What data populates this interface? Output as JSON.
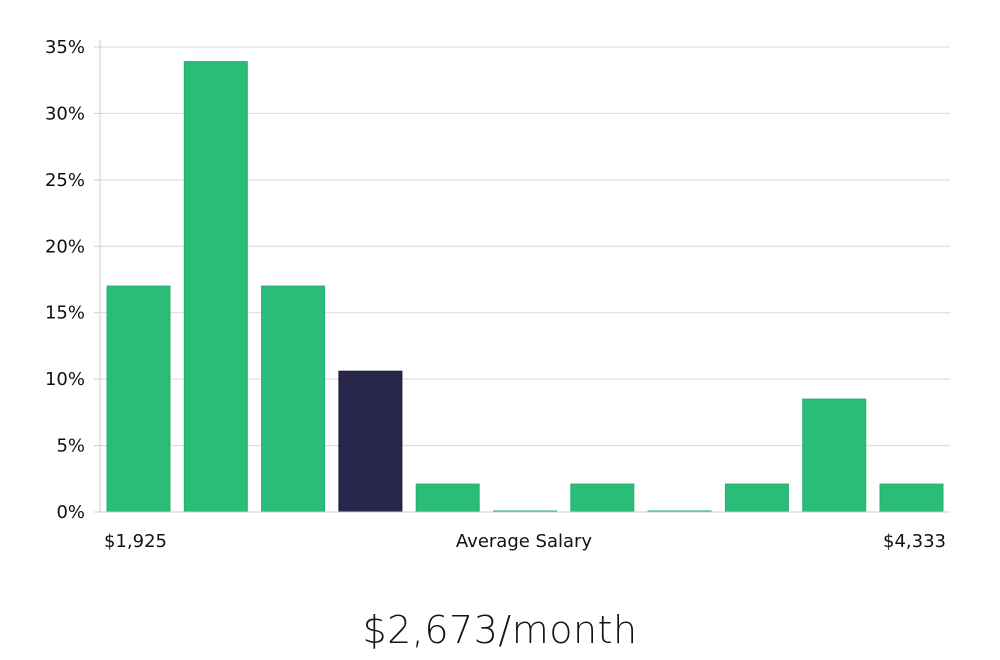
{
  "headline": "$2,673/month",
  "colors": {
    "bar": "#2bbd77",
    "highlight": "#28264a",
    "grid": "#d9d9d9",
    "axis": "#cccccc"
  },
  "chart_data": {
    "type": "bar",
    "title": "",
    "xlabel": "Average Salary",
    "ylabel": "",
    "x_min_label": "$1,925",
    "x_max_label": "$4,333",
    "ylim": [
      0,
      35
    ],
    "yticks": [
      0,
      5,
      10,
      15,
      20,
      25,
      30,
      35
    ],
    "ytick_labels": [
      "0%",
      "5%",
      "10%",
      "15%",
      "20%",
      "25%",
      "30%",
      "35%"
    ],
    "y_unit": "%",
    "grid": true,
    "highlight_index": 3,
    "values": [
      17.0,
      33.9,
      17.0,
      10.6,
      2.1,
      0.0,
      2.1,
      0.0,
      2.1,
      8.5,
      2.1
    ]
  }
}
